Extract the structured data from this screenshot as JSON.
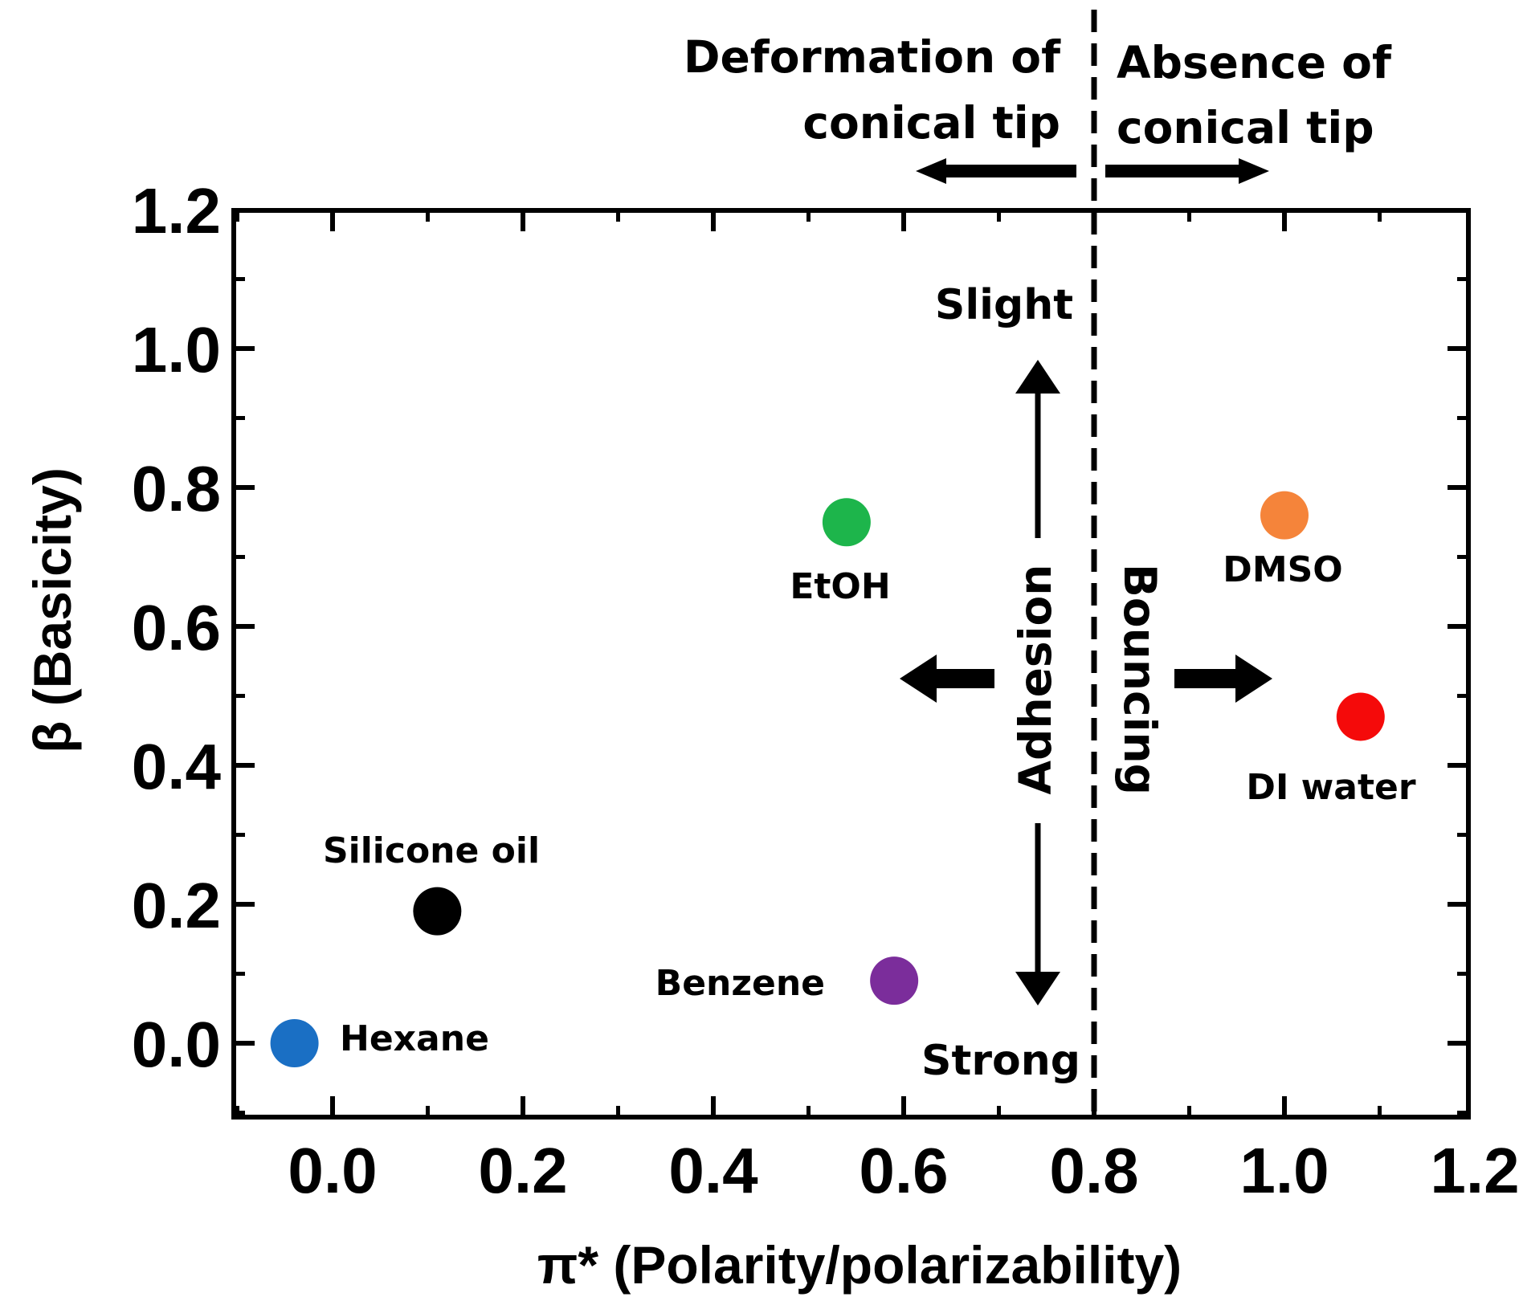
{
  "chart_data": {
    "type": "scatter",
    "title": "",
    "xlabel": "π* (Polarity/polarizability)",
    "ylabel": "β (Basicity)",
    "xlim": [
      -0.1,
      1.2
    ],
    "ylim": [
      -0.1,
      1.2
    ],
    "xticks": [
      "0.0",
      "0.2",
      "0.4",
      "0.6",
      "0.8",
      "1.0",
      "1.2"
    ],
    "xtick_values": [
      0.0,
      0.2,
      0.4,
      0.6,
      0.8,
      1.0,
      1.2
    ],
    "yticks": [
      "0.0",
      "0.2",
      "0.4",
      "0.6",
      "0.8",
      "1.0",
      "1.2"
    ],
    "ytick_values": [
      0.0,
      0.2,
      0.4,
      0.6,
      0.8,
      1.0,
      1.2
    ],
    "threshold_x": 0.8,
    "points": [
      {
        "name": "Hexane",
        "x": -0.04,
        "y": 0.0,
        "color": "#1a6fc4"
      },
      {
        "name": "Silicone oil",
        "x": 0.11,
        "y": 0.19,
        "color": "#000000"
      },
      {
        "name": "Benzene",
        "x": 0.59,
        "y": 0.09,
        "color": "#7b2d9b"
      },
      {
        "name": "EtOH",
        "x": 0.54,
        "y": 0.75,
        "color": "#1db54b"
      },
      {
        "name": "DMSO",
        "x": 1.0,
        "y": 0.76,
        "color": "#f5843a"
      },
      {
        "name": "DI water",
        "x": 1.08,
        "y": 0.47,
        "color": "#f50a0a"
      }
    ],
    "annotations": {
      "deformation": [
        "Deformation of",
        "conical tip"
      ],
      "absence": [
        "Absence of",
        "conical tip"
      ],
      "adhesion": "Adhesion",
      "bouncing": "Bouncing",
      "slight": "Slight",
      "strong": "Strong"
    }
  }
}
